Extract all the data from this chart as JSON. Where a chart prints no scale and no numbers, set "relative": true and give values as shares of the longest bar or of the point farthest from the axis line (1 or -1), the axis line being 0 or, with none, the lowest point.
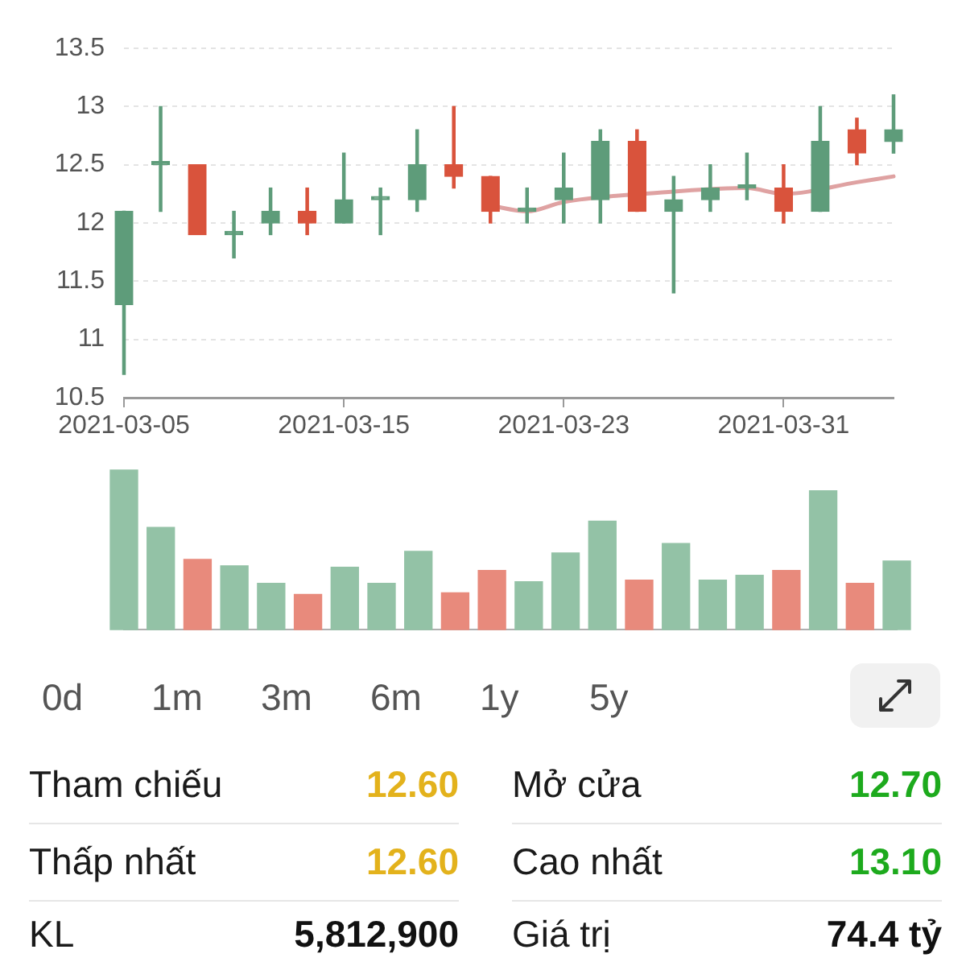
{
  "chart_data": [
    {
      "type": "candlestick",
      "categories": [
        "2021-03-05",
        null,
        null,
        null,
        null,
        null,
        "2021-03-15",
        null,
        null,
        null,
        null,
        null,
        "2021-03-23",
        null,
        null,
        null,
        null,
        null,
        "2021-03-31",
        null,
        null,
        null
      ],
      "ohlc": [
        [
          11.3,
          12.1,
          10.7,
          12.1
        ],
        [
          12.5,
          13.0,
          12.1,
          12.5
        ],
        [
          12.5,
          12.5,
          11.9,
          11.9
        ],
        [
          11.9,
          12.1,
          11.7,
          11.9
        ],
        [
          12.0,
          12.3,
          11.9,
          12.1
        ],
        [
          12.1,
          12.3,
          11.9,
          12.0
        ],
        [
          12.0,
          12.6,
          12.0,
          12.2
        ],
        [
          12.2,
          12.3,
          11.9,
          12.2
        ],
        [
          12.2,
          12.8,
          12.1,
          12.5
        ],
        [
          12.5,
          13.0,
          12.3,
          12.4
        ],
        [
          12.4,
          12.4,
          12.0,
          12.1
        ],
        [
          12.1,
          12.3,
          12.0,
          12.1
        ],
        [
          12.2,
          12.6,
          12.0,
          12.3
        ],
        [
          12.2,
          12.8,
          12.0,
          12.7
        ],
        [
          12.7,
          12.8,
          12.1,
          12.1
        ],
        [
          12.1,
          12.4,
          11.4,
          12.2
        ],
        [
          12.2,
          12.5,
          12.1,
          12.3
        ],
        [
          12.3,
          12.6,
          12.2,
          12.3
        ],
        [
          12.3,
          12.5,
          12.0,
          12.1
        ],
        [
          12.1,
          13.0,
          12.1,
          12.7
        ],
        [
          12.8,
          12.9,
          12.5,
          12.6
        ],
        [
          12.7,
          13.1,
          12.6,
          12.8
        ]
      ],
      "colors": [
        "#5e9c7a",
        "#5e9c7a",
        "#d9533c",
        "#5e9c7a",
        "#5e9c7a",
        "#d9533c",
        "#5e9c7a",
        "#5e9c7a",
        "#5e9c7a",
        "#d9533c",
        "#d9533c",
        "#5e9c7a",
        "#5e9c7a",
        "#5e9c7a",
        "#d9533c",
        "#5e9c7a",
        "#5e9c7a",
        "#5e9c7a",
        "#d9533c",
        "#5e9c7a",
        "#d9533c",
        "#5e9c7a"
      ],
      "series": [
        {
          "type": "line",
          "color": "#dfa2a2",
          "values": [
            null,
            null,
            null,
            null,
            null,
            null,
            null,
            null,
            null,
            null,
            12.15,
            12.1,
            12.18,
            null,
            null,
            12.27,
            12.29,
            12.3,
            12.25,
            null,
            12.35,
            12.4
          ]
        }
      ],
      "ylim": [
        10.5,
        13.5
      ],
      "yticks": [
        10.5,
        11,
        11.5,
        12,
        12.5,
        13,
        13.5
      ],
      "grid": "y",
      "marker": "none"
    },
    {
      "type": "bar",
      "relative": true,
      "categories": [
        null,
        null,
        null,
        null,
        null,
        null,
        null,
        null,
        null,
        null,
        null,
        null,
        null,
        null,
        null,
        null,
        null,
        null,
        null,
        null,
        null,
        null
      ],
      "values": [
        1.0,
        0.64,
        0.44,
        0.4,
        0.29,
        0.22,
        0.39,
        0.29,
        0.49,
        0.23,
        0.37,
        0.3,
        0.48,
        0.68,
        0.31,
        0.54,
        0.31,
        0.34,
        0.37,
        0.87,
        0.29,
        0.43
      ],
      "colors": [
        "#93c2a6",
        "#93c2a6",
        "#e88a7c",
        "#93c2a6",
        "#93c2a6",
        "#e88a7c",
        "#93c2a6",
        "#93c2a6",
        "#93c2a6",
        "#e88a7c",
        "#e88a7c",
        "#93c2a6",
        "#93c2a6",
        "#93c2a6",
        "#e88a7c",
        "#93c2a6",
        "#93c2a6",
        "#93c2a6",
        "#e88a7c",
        "#93c2a6",
        "#e88a7c",
        "#93c2a6"
      ]
    },
    {
      "type": "other",
      "annotations": [
        "0d",
        "1m",
        "3m",
        "6m",
        "1y",
        "5y"
      ],
      "categories": [
        "Tham chiếu",
        "Mở cửa",
        "Thấp nhất",
        "Cao nhất",
        "KL",
        "Giá trị"
      ],
      "value_labels": [
        "12.60",
        "12.70",
        "12.60",
        "13.10",
        "5,812,900",
        "74.4 tỷ"
      ],
      "colors": [
        "#e3b21c",
        "#1daa1d",
        "#e3b21c",
        "#1daa1d",
        "#111111",
        "#111111"
      ]
    }
  ]
}
